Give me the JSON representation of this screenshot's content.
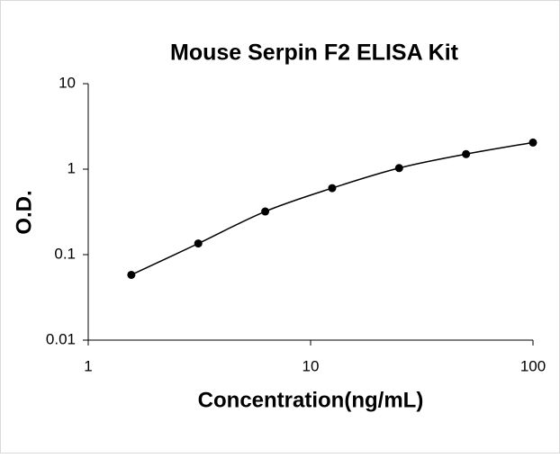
{
  "chart_data": {
    "type": "scatter",
    "title": "Mouse Serpin F2 ELISA Kit",
    "x_label": "Concentration(ng/mL)",
    "y_label": "O.D.",
    "x": [
      1.5625,
      3.125,
      6.25,
      12.5,
      25,
      50,
      100
    ],
    "series": [
      {
        "color": "#000000",
        "values": [
          0.058,
          0.135,
          0.32,
          0.6,
          1.03,
          1.5,
          2.05
        ]
      }
    ],
    "xlim": [
      1,
      100
    ],
    "ylim": [
      0.01,
      10
    ],
    "xticks": [
      1,
      10,
      100
    ],
    "yticks": [
      0.01,
      0.1,
      1,
      10
    ],
    "xscale": "log",
    "yscale": "log",
    "smooth_line": true
  }
}
